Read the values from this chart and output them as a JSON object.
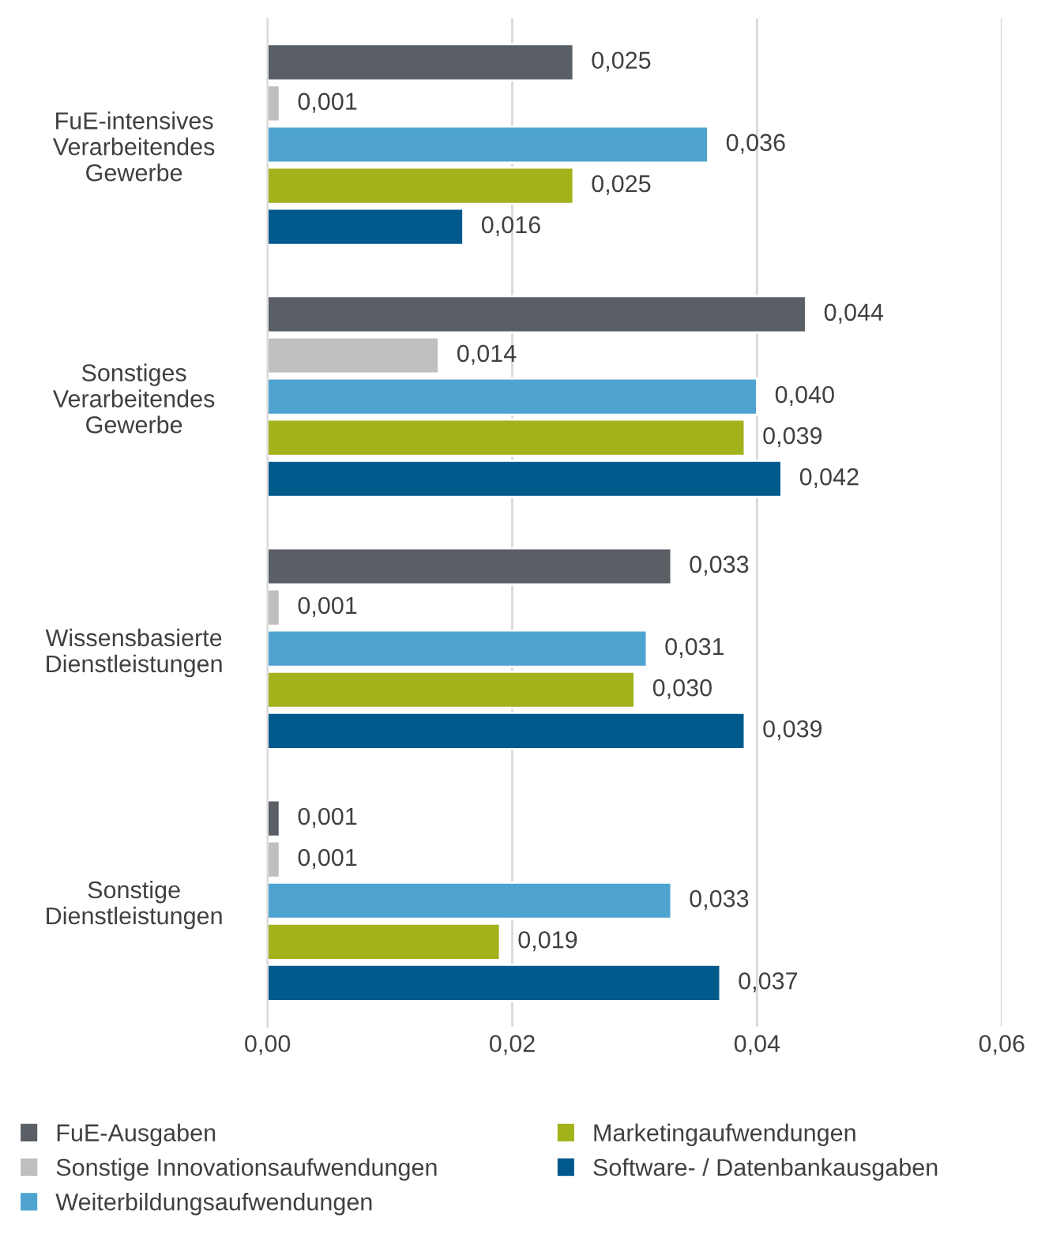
{
  "chart_data": {
    "type": "bar",
    "orientation": "horizontal",
    "categories": [
      "FuE-intensives\nVerarbeitendes\nGewerbe",
      "Sonstiges\nVerarbeitendes\nGewerbe",
      "Wissensbasierte\nDienstleistungen",
      "Sonstige\nDienstleistungen"
    ],
    "series": [
      {
        "name": "FuE-Ausgaben",
        "color": "#595f64",
        "values": [
          0.025,
          0.044,
          0.033,
          0.001
        ],
        "value_labels": [
          "0,025",
          "0,044",
          "0,033",
          "0,001"
        ]
      },
      {
        "name": "Sonstige Innovationsaufwendungen",
        "color": "#bfbfbf",
        "values": [
          0.001,
          0.014,
          0.001,
          0.001
        ],
        "value_labels": [
          "0,001",
          "0,014",
          "0,001",
          "0,001"
        ]
      },
      {
        "name": "Weiterbildungsaufwendungen",
        "color": "#4fa3cf",
        "values": [
          0.036,
          0.04,
          0.031,
          0.033
        ],
        "value_labels": [
          "0,036",
          "0,040",
          "0,031",
          "0,033"
        ]
      },
      {
        "name": "Marketingaufwendungen",
        "color": "#a2b21b",
        "values": [
          0.025,
          0.039,
          0.03,
          0.019
        ],
        "value_labels": [
          "0,025",
          "0,039",
          "0,030",
          "0,019"
        ]
      },
      {
        "name": "Software- / Datenbankausgaben",
        "color": "#005a8c",
        "values": [
          0.016,
          0.042,
          0.039,
          0.037
        ],
        "value_labels": [
          "0,016",
          "0,042",
          "0,039",
          "0,037"
        ]
      }
    ],
    "xlim": [
      0,
      0.06
    ],
    "xticks": [
      {
        "value": 0,
        "label": "0,00"
      },
      {
        "value": 0.02,
        "label": "0,02"
      },
      {
        "value": 0.04,
        "label": "0,04"
      },
      {
        "value": 0.06,
        "label": "0,06"
      }
    ],
    "grid": "x",
    "legend": "bottom"
  }
}
